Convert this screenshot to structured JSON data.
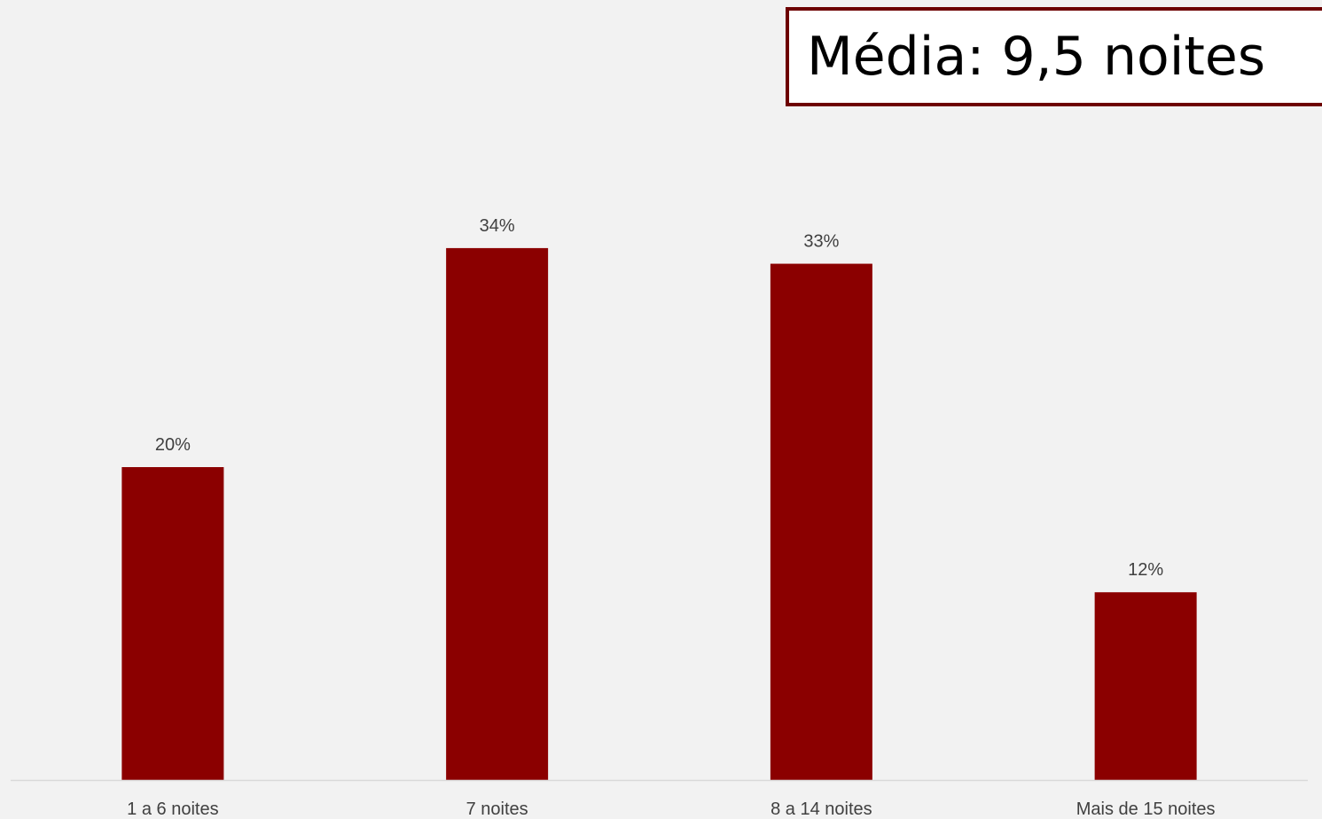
{
  "annotation": {
    "text": "Média: 9,5 noites",
    "border_color": "#6d0000"
  },
  "chart_data": {
    "type": "bar",
    "categories": [
      "1 a 6 noites",
      "7 noites",
      "8 a 14 noites",
      "Mais de 15 noites"
    ],
    "values": [
      20,
      34,
      33,
      12
    ],
    "data_labels": [
      "20%",
      "34%",
      "33%",
      "12%"
    ],
    "title": "",
    "xlabel": "",
    "ylabel": "",
    "ylim": [
      0,
      40
    ],
    "grid": false,
    "legend": "none",
    "bar_color": "#8b0000",
    "axis_color": "#d9d9d9"
  }
}
